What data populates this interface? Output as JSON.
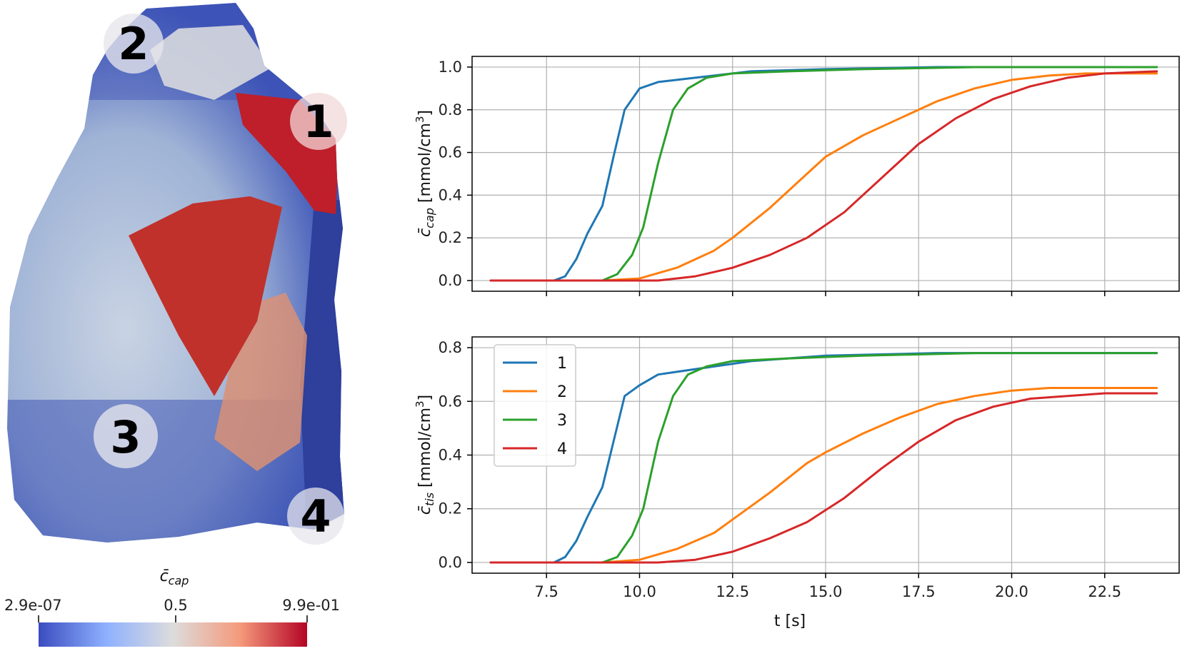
{
  "colorbar": {
    "title_base": "c̄",
    "title_sub": "cap",
    "min_label": "2.9e-07",
    "mid_label": "0.5",
    "max_label": "9.9e-01",
    "colors": [
      "#3b4cc0",
      "#8db0fe",
      "#dddcdc",
      "#f49a7b",
      "#b40426"
    ]
  },
  "heart_markers": [
    {
      "num": "2"
    },
    {
      "num": "1"
    },
    {
      "num": "3"
    },
    {
      "num": "4"
    }
  ],
  "chart_data": [
    {
      "type": "line",
      "panel": "top",
      "ylabel_base": "c̄",
      "ylabel_sub": "cap",
      "ylabel_unit": " [mmol/cm",
      "ylabel_sup": "3",
      "ylabel_close": "]",
      "xlim": [
        5.5,
        24.5
      ],
      "ylim": [
        -0.05,
        1.05
      ],
      "xticks": [
        7.5,
        10.0,
        12.5,
        15.0,
        17.5,
        20.0,
        22.5
      ],
      "yticks": [
        0.0,
        0.2,
        0.4,
        0.6,
        0.8,
        1.0
      ],
      "ytick_labels": [
        "0.0",
        "0.2",
        "0.4",
        "0.6",
        "0.8",
        "1.0"
      ],
      "grid": true,
      "series": [
        {
          "name": "1",
          "color": "#1f77b4",
          "x": [
            6.0,
            7.7,
            8.0,
            8.3,
            8.6,
            9.0,
            9.3,
            9.6,
            10.0,
            10.5,
            11.0,
            12.0,
            13.0,
            15.0,
            18.0,
            21.0,
            23.9
          ],
          "y": [
            0.0,
            0.0,
            0.02,
            0.1,
            0.22,
            0.35,
            0.58,
            0.8,
            0.9,
            0.93,
            0.94,
            0.96,
            0.98,
            0.99,
            1.0,
            1.0,
            1.0
          ]
        },
        {
          "name": "2",
          "color": "#ff7f0e",
          "x": [
            6.0,
            9.0,
            10.0,
            11.0,
            12.0,
            12.5,
            13.5,
            14.5,
            15.0,
            16.0,
            17.0,
            18.0,
            19.0,
            20.0,
            21.0,
            22.0,
            23.9
          ],
          "y": [
            0.0,
            0.0,
            0.01,
            0.06,
            0.14,
            0.2,
            0.34,
            0.5,
            0.58,
            0.68,
            0.76,
            0.84,
            0.9,
            0.94,
            0.96,
            0.97,
            0.97
          ]
        },
        {
          "name": "3",
          "color": "#2ca02c",
          "x": [
            6.0,
            9.0,
            9.4,
            9.8,
            10.1,
            10.5,
            10.9,
            11.3,
            11.8,
            12.5,
            14.0,
            16.0,
            19.0,
            23.9
          ],
          "y": [
            0.0,
            0.0,
            0.03,
            0.12,
            0.25,
            0.55,
            0.8,
            0.9,
            0.95,
            0.97,
            0.98,
            0.99,
            1.0,
            1.0
          ]
        },
        {
          "name": "4",
          "color": "#d62728",
          "x": [
            6.0,
            10.5,
            11.5,
            12.5,
            13.5,
            14.5,
            15.5,
            16.5,
            17.5,
            18.5,
            19.5,
            20.5,
            21.5,
            22.5,
            23.9
          ],
          "y": [
            0.0,
            0.0,
            0.02,
            0.06,
            0.12,
            0.2,
            0.32,
            0.48,
            0.64,
            0.76,
            0.85,
            0.91,
            0.95,
            0.97,
            0.98
          ]
        }
      ]
    },
    {
      "type": "line",
      "panel": "bottom",
      "ylabel_base": "c̄",
      "ylabel_sub": "tis",
      "ylabel_unit": " [mmol/cm",
      "ylabel_sup": "3",
      "ylabel_close": "]",
      "xlabel": "t [s]",
      "xlim": [
        5.5,
        24.5
      ],
      "ylim": [
        -0.04,
        0.84
      ],
      "xticks": [
        7.5,
        10.0,
        12.5,
        15.0,
        17.5,
        20.0,
        22.5
      ],
      "xtick_labels": [
        "7.5",
        "10.0",
        "12.5",
        "15.0",
        "17.5",
        "20.0",
        "22.5"
      ],
      "yticks": [
        0.0,
        0.2,
        0.4,
        0.6,
        0.8
      ],
      "ytick_labels": [
        "0.0",
        "0.2",
        "0.4",
        "0.6",
        "0.8"
      ],
      "grid": true,
      "legend": "upper-left",
      "series": [
        {
          "name": "1",
          "color": "#1f77b4",
          "x": [
            6.0,
            7.7,
            8.0,
            8.3,
            8.6,
            9.0,
            9.3,
            9.6,
            10.0,
            10.5,
            11.0,
            12.0,
            13.0,
            15.0,
            18.0,
            21.0,
            23.9
          ],
          "y": [
            0.0,
            0.0,
            0.02,
            0.08,
            0.17,
            0.28,
            0.45,
            0.62,
            0.66,
            0.7,
            0.71,
            0.73,
            0.75,
            0.77,
            0.78,
            0.78,
            0.78
          ]
        },
        {
          "name": "2",
          "color": "#ff7f0e",
          "x": [
            6.0,
            9.0,
            10.0,
            11.0,
            12.0,
            12.5,
            13.5,
            14.5,
            15.0,
            16.0,
            17.0,
            18.0,
            19.0,
            20.0,
            21.0,
            22.0,
            23.9
          ],
          "y": [
            0.0,
            0.0,
            0.01,
            0.05,
            0.11,
            0.16,
            0.26,
            0.37,
            0.41,
            0.48,
            0.54,
            0.59,
            0.62,
            0.64,
            0.65,
            0.65,
            0.65
          ]
        },
        {
          "name": "3",
          "color": "#2ca02c",
          "x": [
            6.0,
            9.0,
            9.4,
            9.8,
            10.1,
            10.5,
            10.9,
            11.3,
            11.8,
            12.5,
            14.0,
            16.0,
            19.0,
            23.9
          ],
          "y": [
            0.0,
            0.0,
            0.02,
            0.1,
            0.2,
            0.45,
            0.62,
            0.7,
            0.73,
            0.75,
            0.76,
            0.77,
            0.78,
            0.78
          ]
        },
        {
          "name": "4",
          "color": "#d62728",
          "x": [
            6.0,
            10.5,
            11.5,
            12.5,
            13.5,
            14.5,
            15.5,
            16.5,
            17.5,
            18.5,
            19.5,
            20.5,
            21.5,
            22.5,
            23.9
          ],
          "y": [
            0.0,
            0.0,
            0.01,
            0.04,
            0.09,
            0.15,
            0.24,
            0.35,
            0.45,
            0.53,
            0.58,
            0.61,
            0.62,
            0.63,
            0.63
          ]
        }
      ]
    }
  ]
}
